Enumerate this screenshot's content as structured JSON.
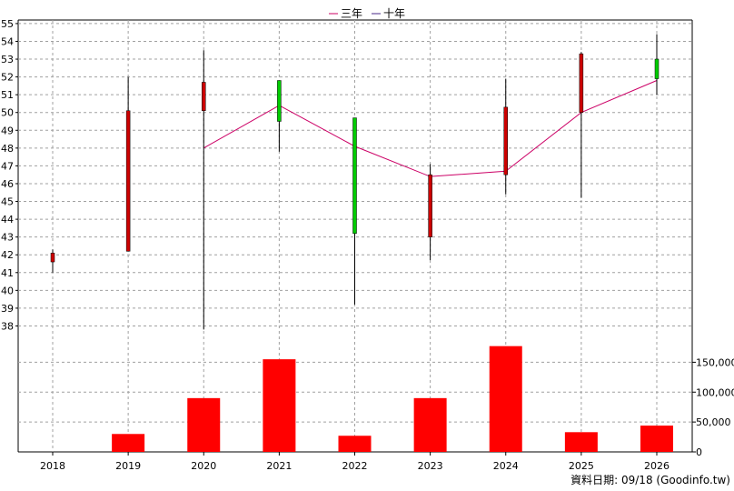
{
  "chart_data": {
    "type": "candlestick+bar",
    "legend": {
      "placement": "top-center",
      "items": [
        {
          "label": "三年",
          "color": "#cc0066"
        },
        {
          "label": "十年",
          "color": "#4a2a8a"
        }
      ]
    },
    "categories": [
      "2018",
      "2019",
      "2020",
      "2021",
      "2022",
      "2023",
      "2024",
      "2025",
      "2026"
    ],
    "price_axis": {
      "ylim": [
        36.9,
        55.2
      ],
      "ticks": [
        38,
        39,
        40,
        41,
        42,
        43,
        44,
        45,
        46,
        47,
        48,
        49,
        50,
        51,
        52,
        53,
        54,
        55
      ]
    },
    "candles": [
      {
        "x": "2018",
        "open": 42.1,
        "close": 41.6,
        "high": 42.3,
        "low": 41.0,
        "color": "#cc0000"
      },
      {
        "x": "2019",
        "open": 50.1,
        "close": 42.2,
        "high": 52.0,
        "low": 42.2,
        "color": "#cc0000"
      },
      {
        "x": "2020",
        "open": 51.7,
        "close": 50.1,
        "high": 53.5,
        "low": 37.8,
        "color": "#cc0000"
      },
      {
        "x": "2021",
        "open": 49.5,
        "close": 51.8,
        "high": 51.8,
        "low": 47.8,
        "color": "#00cc00"
      },
      {
        "x": "2022",
        "open": 43.2,
        "close": 49.7,
        "high": 49.7,
        "low": 39.2,
        "color": "#00cc00"
      },
      {
        "x": "2023",
        "open": 46.5,
        "close": 43.0,
        "high": 47.1,
        "low": 41.7,
        "color": "#cc0000"
      },
      {
        "x": "2024",
        "open": 50.3,
        "close": 46.5,
        "high": 51.9,
        "low": 45.4,
        "color": "#cc0000"
      },
      {
        "x": "2025",
        "open": 53.3,
        "close": 50.0,
        "high": 53.4,
        "low": 45.2,
        "color": "#cc0000"
      },
      {
        "x": "2026",
        "open": 51.9,
        "close": 53.0,
        "high": 54.4,
        "low": 51.0,
        "color": "#00cc00"
      }
    ],
    "series": [
      {
        "name": "三年",
        "color": "#cc0066",
        "points": [
          [
            "2020",
            48.0
          ],
          [
            "2021",
            50.4
          ],
          [
            "2022",
            48.1
          ],
          [
            "2023",
            46.4
          ],
          [
            "2024",
            46.7
          ],
          [
            "2025",
            50.0
          ],
          [
            "2026",
            51.8
          ]
        ]
      }
    ],
    "volume_axis": {
      "ylim": [
        0,
        178000
      ],
      "ticks": [
        0,
        50000,
        100000,
        150000
      ],
      "tick_labels": [
        "0",
        "50,000",
        "100,000",
        "150,000"
      ]
    },
    "volume": {
      "color": "#ff0000",
      "values": [
        0,
        30000,
        90000,
        155000,
        27000,
        90000,
        177000,
        33000,
        44000
      ]
    },
    "grid": true
  },
  "source_label": "資料日期: 09/18  (Goodinfo.tw)"
}
